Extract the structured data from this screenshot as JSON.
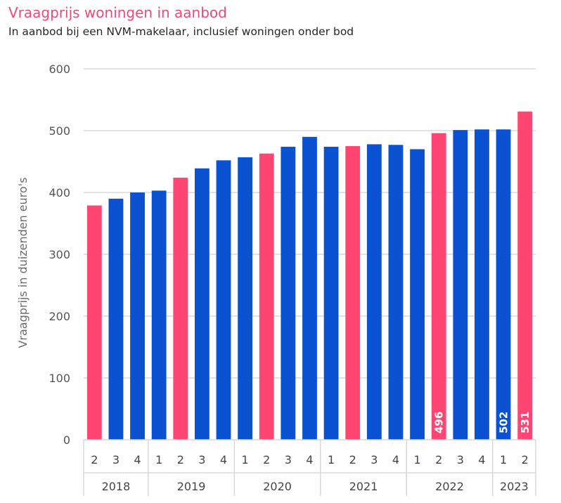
{
  "title": "Vraagprijs woningen in aanbod",
  "subtitle": "In aanbod bij een NVM-makelaar, inclusief woningen onder bod",
  "colors": {
    "title": "#ee4a74",
    "highlight": "#ff4672",
    "bar": "#0a52d2",
    "grid": "#d9d9d9"
  },
  "chart_data": {
    "type": "bar",
    "title": "Vraagprijs woningen in aanbod",
    "subtitle": "In aanbod bij een NVM-makelaar, inclusief woningen onder bod",
    "xlabel": "",
    "ylabel": "Vraagprijs in duizenden euro's",
    "ylim": [
      0,
      600
    ],
    "yticks": [
      0,
      100,
      200,
      300,
      400,
      500,
      600
    ],
    "grid": true,
    "years": [
      {
        "label": "2018",
        "quarters": [
          "2",
          "3",
          "4"
        ]
      },
      {
        "label": "2019",
        "quarters": [
          "1",
          "2",
          "3",
          "4"
        ]
      },
      {
        "label": "2020",
        "quarters": [
          "1",
          "2",
          "3",
          "4"
        ]
      },
      {
        "label": "2021",
        "quarters": [
          "1",
          "2",
          "3",
          "4"
        ]
      },
      {
        "label": "2022",
        "quarters": [
          "1",
          "2",
          "3",
          "4"
        ]
      },
      {
        "label": "2023",
        "quarters": [
          "1",
          "2"
        ]
      }
    ],
    "values": [
      379,
      390,
      400,
      403,
      424,
      439,
      452,
      457,
      463,
      474,
      490,
      474,
      475,
      478,
      477,
      470,
      496,
      501,
      502,
      502,
      531
    ],
    "highlight": [
      true,
      false,
      false,
      false,
      true,
      false,
      false,
      false,
      true,
      false,
      false,
      false,
      true,
      false,
      false,
      false,
      true,
      false,
      false,
      false,
      true
    ],
    "data_labels": [
      {
        "index": 16,
        "text": "496"
      },
      {
        "index": 19,
        "text": "502"
      },
      {
        "index": 20,
        "text": "531"
      }
    ]
  }
}
